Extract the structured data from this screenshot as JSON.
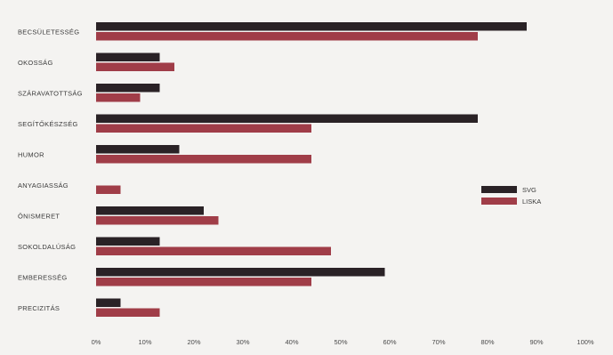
{
  "chart_data": {
    "type": "bar",
    "orientation": "horizontal",
    "categories": [
      "BECSÜLETESSÉG",
      "OKOSSÁG",
      "SZÁRAVATOTTSÁG",
      "SEGÍTŐKÉSZSÉG",
      "HUMOR",
      "ANYAGIASSÁG",
      "ÖNISMERET",
      "SOKOLDALÚSÁG",
      "EMBERESSÉG",
      "PRECIZITÁS"
    ],
    "series": [
      {
        "name": "SVG",
        "color": "#2a2226",
        "values": [
          88,
          13,
          13,
          78,
          17,
          0,
          22,
          13,
          59,
          5
        ]
      },
      {
        "name": "LISKA",
        "color": "#a03d48",
        "values": [
          78,
          16,
          9,
          44,
          44,
          5,
          25,
          48,
          44,
          13
        ]
      }
    ],
    "xlim": [
      0,
      100
    ],
    "x_ticks": [
      "0%",
      "10%",
      "20%",
      "30%",
      "40%",
      "50%",
      "60%",
      "70%",
      "80%",
      "90%",
      "100%"
    ],
    "legend_position": "right",
    "grid": false
  }
}
